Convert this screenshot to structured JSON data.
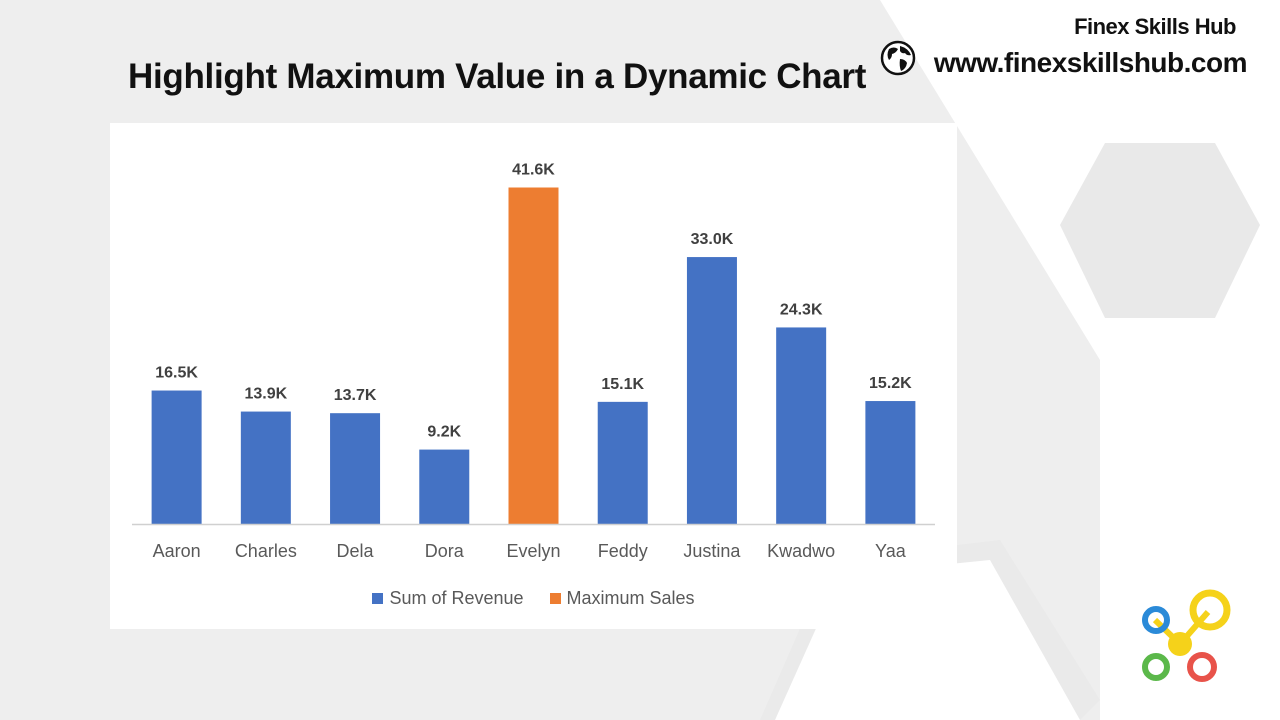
{
  "page": {
    "title": "Highlight Maximum Value in a Dynamic Chart",
    "brand_name": "Finex Skills Hub",
    "brand_url": "www.finexskillshub.com"
  },
  "colors": {
    "revenue": "#4472c4",
    "maximum": "#ed7d31",
    "label": "#404040",
    "axis_text": "#595959"
  },
  "icons": [
    "globe-icon",
    "finex-logo-icon"
  ],
  "chart_data": {
    "type": "bar",
    "title": "",
    "categories": [
      "Aaron",
      "Charles",
      "Dela",
      "Dora",
      "Evelyn",
      "Feddy",
      "Justina",
      "Kwadwo",
      "Yaa"
    ],
    "series": [
      {
        "name": "Sum of Revenue",
        "values": [
          16.5,
          13.9,
          13.7,
          9.2,
          0,
          15.1,
          33.0,
          24.3,
          15.2
        ]
      },
      {
        "name": "Maximum Sales",
        "values": [
          0,
          0,
          0,
          0,
          41.6,
          0,
          0,
          0,
          0
        ]
      }
    ],
    "data_labels": [
      "16.5K",
      "13.9K",
      "13.7K",
      "9.2K",
      "41.6K",
      "15.1K",
      "33.0K",
      "24.3K",
      "15.2K"
    ],
    "value_unit": "K",
    "xlabel": "",
    "ylabel": "",
    "ylim": [
      0,
      45
    ],
    "grid": false,
    "y_axis_visible": false,
    "legend_position": "bottom"
  }
}
